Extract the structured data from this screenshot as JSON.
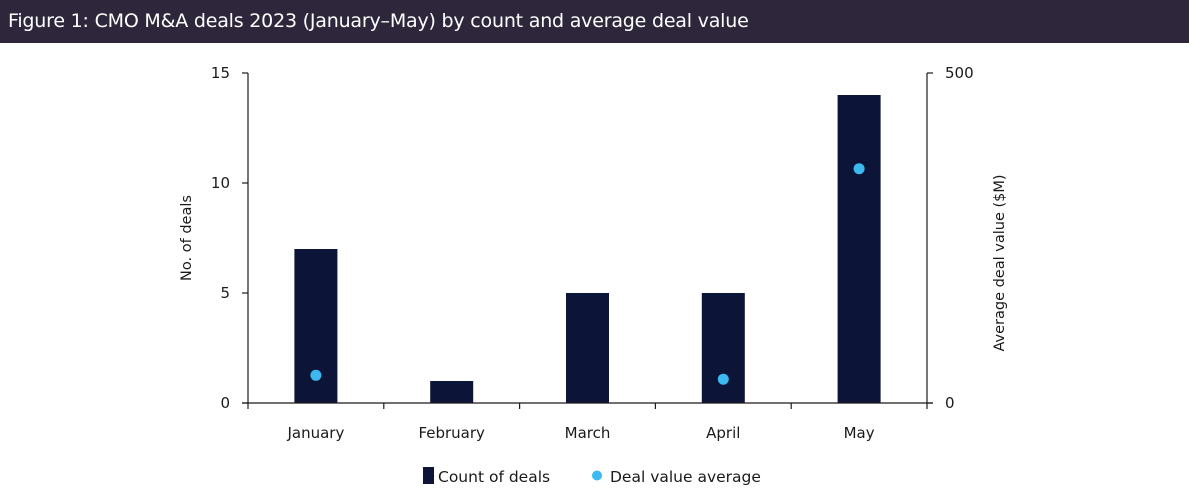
{
  "header": {
    "title": "Figure 1: CMO M&A deals 2023 (January–May) by count and average deal value"
  },
  "colors": {
    "header_bg": "#2e273b",
    "bar": "#0c1538",
    "dot": "#3bb9f0",
    "axis": "#1a1a1a"
  },
  "chart_data": {
    "type": "bar",
    "title": "Figure 1: CMO M&A deals 2023 (January–May) by count and average deal value",
    "categories": [
      "January",
      "February",
      "March",
      "April",
      "May"
    ],
    "series": [
      {
        "name": "Count of deals",
        "type": "bar",
        "axis": "left",
        "values": [
          7,
          1,
          5,
          5,
          14
        ]
      },
      {
        "name": "Deal value average",
        "type": "scatter",
        "axis": "right",
        "values": [
          42,
          null,
          null,
          36,
          355
        ]
      }
    ],
    "ylabel": "No. of deals",
    "ylim": [
      0,
      15
    ],
    "yticks": [
      0,
      5,
      10,
      15
    ],
    "y2label": "Average deal value ($M)",
    "y2lim": [
      0,
      500
    ],
    "y2ticks": [
      0,
      500
    ],
    "xlabel": "",
    "grid": false,
    "legend": {
      "placement": "bottom-center",
      "entries": [
        "Count of deals",
        "Deal value average"
      ]
    }
  }
}
